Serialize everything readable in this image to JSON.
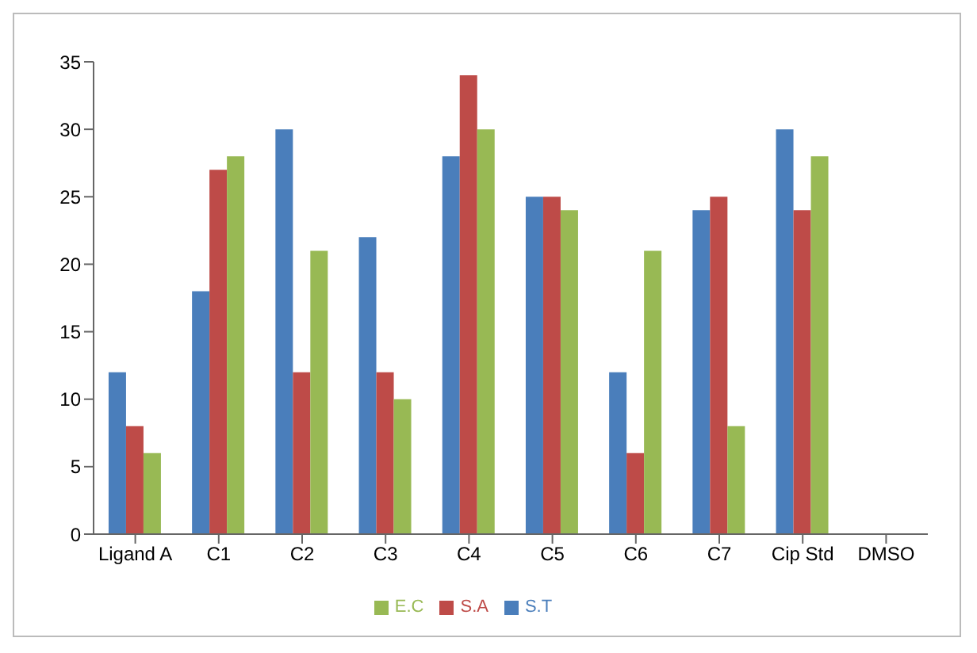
{
  "chart_data": {
    "type": "bar",
    "categories": [
      "Ligand A",
      "C1",
      "C2",
      "C3",
      "C4",
      "C5",
      "C6",
      "C7",
      "Cip Std",
      "DMSO"
    ],
    "series": [
      {
        "name": "S.T",
        "color": "#4a7ebb",
        "values": [
          12,
          18,
          30,
          22,
          28,
          25,
          12,
          24,
          30,
          0
        ]
      },
      {
        "name": "S.A",
        "color": "#be4b48",
        "values": [
          8,
          27,
          12,
          12,
          34,
          25,
          6,
          25,
          24,
          0
        ]
      },
      {
        "name": "E.C",
        "color": "#98b954",
        "values": [
          6,
          28,
          21,
          10,
          30,
          24,
          21,
          8,
          28,
          0
        ]
      }
    ],
    "ylim": [
      0,
      35
    ],
    "yticks": [
      0,
      5,
      10,
      15,
      20,
      25,
      30,
      35
    ],
    "grid": false,
    "legend": "bottom"
  }
}
